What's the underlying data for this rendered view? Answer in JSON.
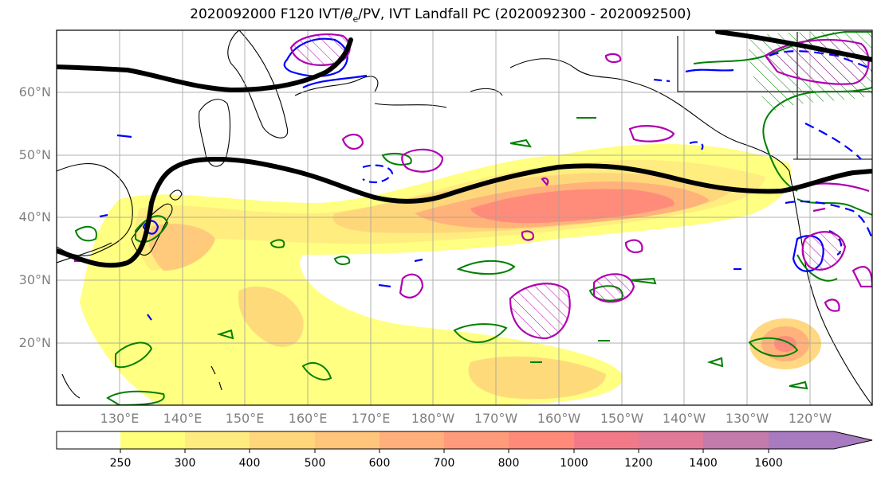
{
  "title": {
    "main": "2020092000 F120 IVT/",
    "symbol": "θ",
    "subscript": "e",
    "rest": "/PV, IVT Landfall PC (2020092300 - 2020092500)"
  },
  "map": {
    "projection": "PlateCarree",
    "lon_range": [
      120,
      250
    ],
    "lat_range": [
      10,
      70
    ],
    "lat_ticks": [
      "20°N",
      "30°N",
      "40°N",
      "50°N",
      "60°N"
    ],
    "lon_ticks": [
      "130°E",
      "140°E",
      "150°E",
      "160°E",
      "170°E",
      "180°W",
      "170°W",
      "160°W",
      "150°W",
      "140°W",
      "130°W",
      "120°W"
    ],
    "grid": true,
    "colors": {
      "jet_contour": "#000000",
      "pv_positive": "#0000ff",
      "pv_negative": "#b000b0",
      "theta_e": "#008000",
      "coastline": "#000000"
    }
  },
  "colorbar": {
    "levels": [
      250,
      300,
      400,
      500,
      600,
      700,
      800,
      1000,
      1200,
      1400,
      1600
    ],
    "labels": [
      "250",
      "300",
      "400",
      "500",
      "600",
      "700",
      "800",
      "1000",
      "1200",
      "1400",
      "1600"
    ],
    "colors": [
      "#ffff7a",
      "#ffec80",
      "#ffd67a",
      "#ffc57a",
      "#ffb07a",
      "#ff9b7a",
      "#ff8a7a",
      "#f27a88",
      "#e07a98",
      "#c47aaa",
      "#a87ac0"
    ],
    "extend": "max"
  }
}
